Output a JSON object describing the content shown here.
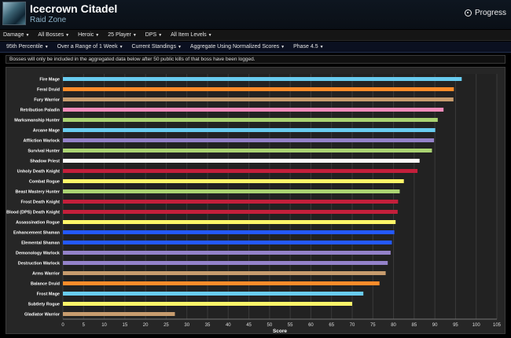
{
  "header": {
    "title": "Icecrown Citadel",
    "subtitle": "Raid Zone",
    "progress_label": "Progress",
    "progress_icon": "progress-icon"
  },
  "filters_top": [
    "Damage",
    "All Bosses",
    "Heroic",
    "25 Player",
    "DPS",
    "All Item Levels"
  ],
  "filters_bottom": [
    "95th Percentile",
    "Over a Range of 1 Week",
    "Current Standings",
    "Aggregate Using Normalized Scores",
    "Phase 4.5"
  ],
  "notice": "Bosses will only be included in the aggregated data below after 50 public kills of that boss have been logged.",
  "chart_data": {
    "type": "bar",
    "orientation": "horizontal",
    "xlabel": "Score",
    "xlim": [
      0,
      105
    ],
    "xticks": [
      0,
      5,
      10,
      15,
      20,
      25,
      30,
      35,
      40,
      45,
      50,
      55,
      60,
      65,
      70,
      75,
      80,
      85,
      90,
      95,
      100,
      105
    ],
    "grid": true,
    "categories": [
      "Fire Mage",
      "Feral Druid",
      "Fury Warrior",
      "Retribution Paladin",
      "Marksmanship Hunter",
      "Arcane Mage",
      "Affliction Warlock",
      "Survival Hunter",
      "Shadow Priest",
      "Unholy Death Knight",
      "Combat Rogue",
      "Beast Mastery Hunter",
      "Frost Death Knight",
      "Blood (DPS) Death Knight",
      "Assassination Rogue",
      "Enhancement Shaman",
      "Elemental Shaman",
      "Demonology Warlock",
      "Destruction Warlock",
      "Arms Warrior",
      "Balance Druid",
      "Frost Mage",
      "Subtlety Rogue",
      "Gladiator Warrior"
    ],
    "values": [
      96.5,
      94.6,
      94.5,
      92.1,
      90.7,
      90.1,
      89.8,
      89.3,
      86.3,
      85.8,
      82.5,
      81.5,
      81.1,
      81.0,
      80.5,
      80.2,
      79.6,
      79.3,
      78.6,
      78.1,
      76.6,
      72.7,
      70.0,
      27.1
    ],
    "colors": [
      "#69ccf0",
      "#ff8c2a",
      "#c79c6e",
      "#f58cba",
      "#abd473",
      "#69ccf0",
      "#9482c9",
      "#abd473",
      "#ffffff",
      "#c41f3b",
      "#fff569",
      "#abd473",
      "#c41f3b",
      "#c41f3b",
      "#fff569",
      "#2459ff",
      "#2459ff",
      "#9482c9",
      "#9482c9",
      "#c79c6e",
      "#ff8c2a",
      "#69ccf0",
      "#fff569",
      "#c79c6e"
    ]
  }
}
